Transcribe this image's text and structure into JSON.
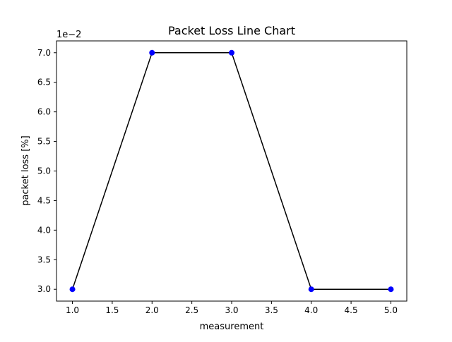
{
  "chart_data": {
    "type": "line",
    "title": "Packet Loss Line Chart",
    "xlabel": "measurement",
    "ylabel": "packet loss [%]",
    "offset_label": "1e−2",
    "xlim": [
      0.8,
      5.2
    ],
    "ylim": [
      2.8,
      7.2
    ],
    "x_ticks": [
      1.0,
      1.5,
      2.0,
      2.5,
      3.0,
      3.5,
      4.0,
      4.5,
      5.0
    ],
    "x_tick_labels": [
      "1.0",
      "1.5",
      "2.0",
      "2.5",
      "3.0",
      "3.5",
      "4.0",
      "4.5",
      "5.0"
    ],
    "y_ticks": [
      3.0,
      3.5,
      4.0,
      4.5,
      5.0,
      5.5,
      6.0,
      6.5,
      7.0
    ],
    "y_tick_labels": [
      "3.0",
      "3.5",
      "4.0",
      "4.5",
      "5.0",
      "5.5",
      "6.0",
      "6.5",
      "7.0"
    ],
    "grid": false,
    "series": [
      {
        "x": [
          1,
          2,
          3,
          4,
          5
        ],
        "values": [
          3.0,
          7.0,
          7.0,
          3.0,
          3.0
        ],
        "line_color": "#000000",
        "marker_color": "#0000ff"
      }
    ]
  }
}
